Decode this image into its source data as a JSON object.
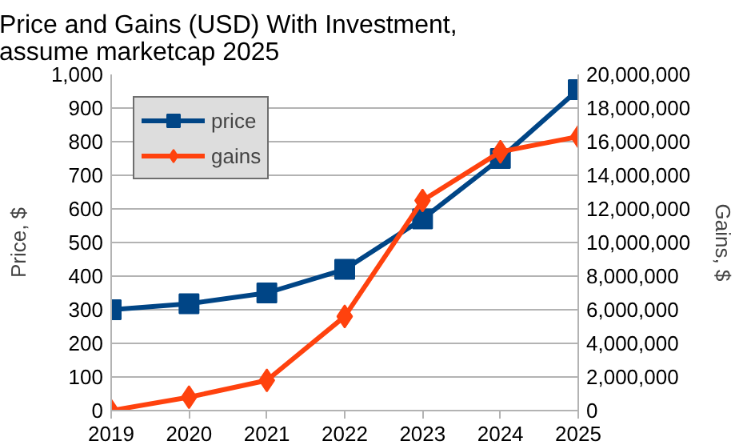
{
  "chart_data": {
    "type": "line",
    "title": "Price and Gains (USD) With Investment, assume marketcap 2025",
    "ylabel": "Price, $",
    "y2label": "Gains, $",
    "x": [
      2019,
      2020,
      2021,
      2022,
      2023,
      2024,
      2025
    ],
    "xlim": [
      2019,
      2025
    ],
    "xticks": [
      2019,
      2020,
      2021,
      2022,
      2023,
      2024,
      2025
    ],
    "ylim": [
      0,
      1000
    ],
    "yticks": [
      0,
      100,
      200,
      300,
      400,
      500,
      600,
      700,
      800,
      900,
      {
        "value": 1000,
        "label": "1,000"
      }
    ],
    "y2lim": [
      0,
      20000000
    ],
    "y2ticks": [
      0,
      {
        "value": 2000000,
        "label": "2,000,000"
      },
      {
        "value": 4000000,
        "label": "4,000,000"
      },
      {
        "value": 6000000,
        "label": "6,000,000"
      },
      {
        "value": 8000000,
        "label": "8,000,000"
      },
      {
        "value": 10000000,
        "label": "10,000,000"
      },
      {
        "value": 12000000,
        "label": "12,000,000"
      },
      {
        "value": 14000000,
        "label": "14,000,000"
      },
      {
        "value": 16000000,
        "label": "16,000,000"
      },
      {
        "value": 18000000,
        "label": "18,000,000"
      },
      {
        "value": 20000000,
        "label": "20,000,000"
      }
    ],
    "series": [
      {
        "name": "price",
        "color": "#004586",
        "marker": "square",
        "values": [
          300,
          318,
          350,
          420,
          570,
          750,
          955
        ]
      },
      {
        "name": "gains",
        "color": "#ff420e",
        "marker": "diamond",
        "axis": "y2",
        "values": [
          0,
          800000,
          1800000,
          5600000,
          12500000,
          15400000,
          16300000
        ]
      }
    ],
    "grid": "y",
    "legend": "top left"
  }
}
